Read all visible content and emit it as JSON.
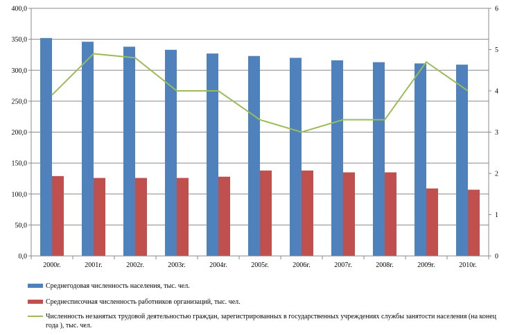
{
  "chart_data": {
    "type": "bar",
    "categories": [
      "2000г.",
      "2001г.",
      "2002г.",
      "2003г.",
      "2004г.",
      "2005г.",
      "2006г.",
      "2007г.",
      "2008г.",
      "2009г.",
      "2010г."
    ],
    "series": [
      {
        "name": "Среднегодовая численность населения, тыс. чел.",
        "type": "bar",
        "axis": "left",
        "color": "#4F81BD",
        "values": [
          352,
          346,
          338,
          333,
          327,
          323,
          320,
          316,
          313,
          311,
          309
        ]
      },
      {
        "name": "Среднесписочная численность работников организаций, тыс. чел.",
        "type": "bar",
        "axis": "left",
        "color": "#C0504D",
        "values": [
          129,
          126,
          126,
          126,
          128,
          138,
          138,
          135,
          135,
          109,
          107
        ]
      },
      {
        "name": "Численность незанятых трудовой деятельностью граждан, зарегистрированных в государственных учреждениях службы занятости населения (на конец года ), тыс. чел.",
        "type": "line",
        "axis": "right",
        "color": "#9BBB59",
        "values": [
          3.9,
          4.9,
          4.8,
          4.0,
          4.0,
          3.3,
          3.0,
          3.3,
          3.3,
          4.7,
          4.0
        ]
      }
    ],
    "ylim": [
      0,
      400
    ],
    "y_ticks": [
      "0,0",
      "50,0",
      "100,0",
      "150,0",
      "200,0",
      "250,0",
      "300,0",
      "350,0",
      "400,0"
    ],
    "y2lim": [
      0,
      6
    ],
    "y2_ticks": [
      "0",
      "1",
      "2",
      "3",
      "4",
      "5",
      "6"
    ],
    "grid": true,
    "legend_position": "bottom"
  }
}
